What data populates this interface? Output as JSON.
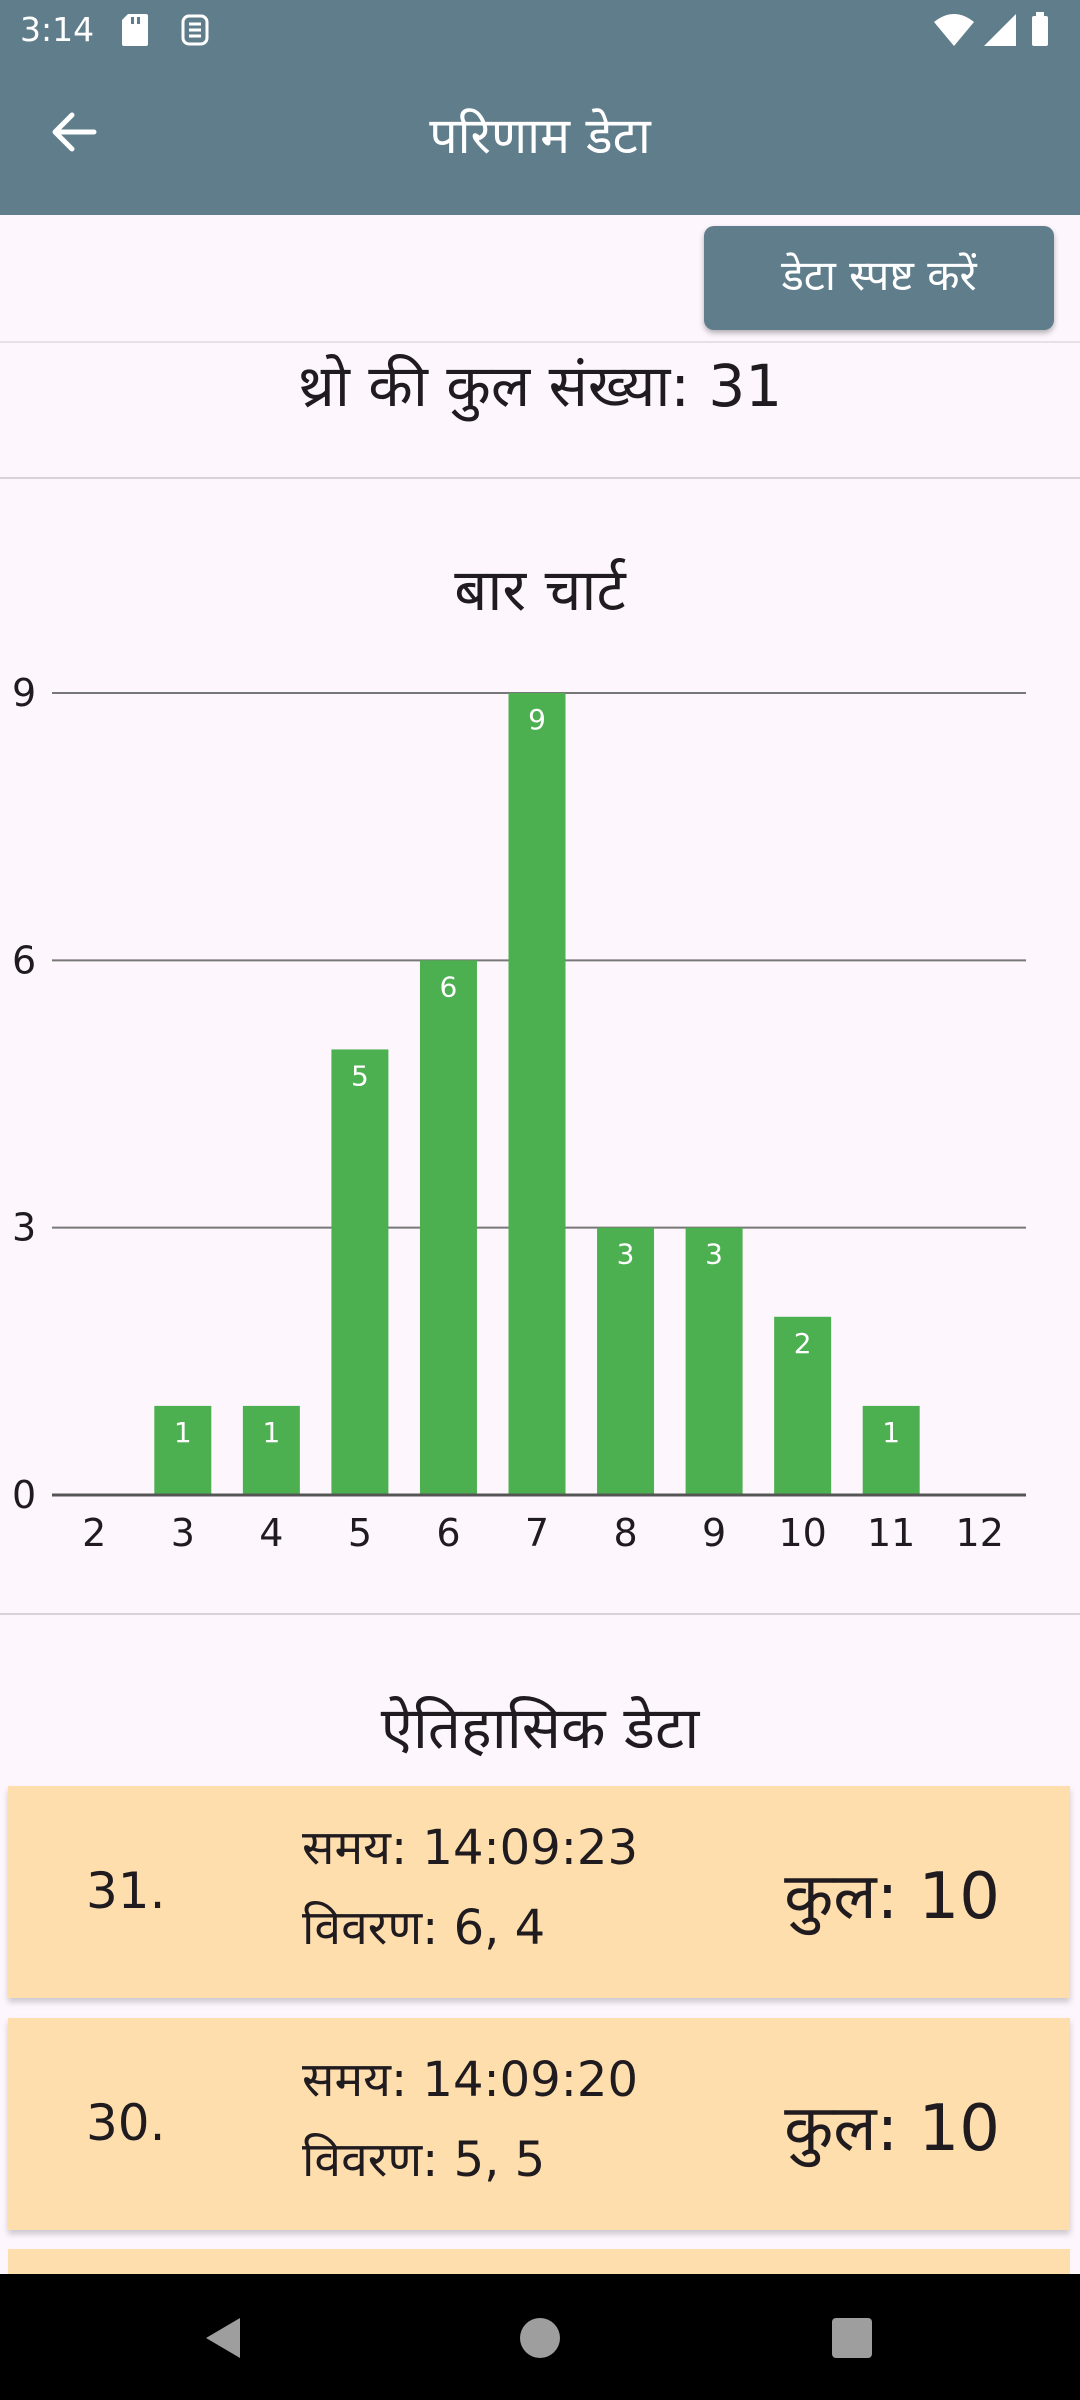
{
  "status": {
    "time": "3:14"
  },
  "appbar": {
    "title": "परिणाम डेटा"
  },
  "clear_button": "डेटा स्पष्ट करें",
  "total_label": "थ्रो की कुल संख्या: 31",
  "chart_title": "बार चार्ट",
  "colors": {
    "primary": "#607d8b",
    "bar": "#4caf50",
    "card": "#ffdeae"
  },
  "chart_data": {
    "type": "bar",
    "categories": [
      "2",
      "3",
      "4",
      "5",
      "6",
      "7",
      "8",
      "9",
      "10",
      "11",
      "12"
    ],
    "values": [
      0,
      1,
      1,
      5,
      6,
      9,
      3,
      3,
      2,
      1,
      0
    ],
    "title": "बार चार्ट",
    "xlabel": "",
    "ylabel": "",
    "ylim": [
      0,
      9
    ],
    "yticks": [
      0,
      3,
      6,
      9
    ],
    "grid": true
  },
  "history": {
    "title": "ऐतिहासिक डेटा",
    "entries": [
      {
        "index": "31.",
        "time": "समय: 14:09:23",
        "detail": "विवरण: 6, 4",
        "total": "कुल: 10"
      },
      {
        "index": "30.",
        "time": "समय: 14:09:20",
        "detail": "विवरण: 5, 5",
        "total": "कुल: 10"
      }
    ]
  }
}
